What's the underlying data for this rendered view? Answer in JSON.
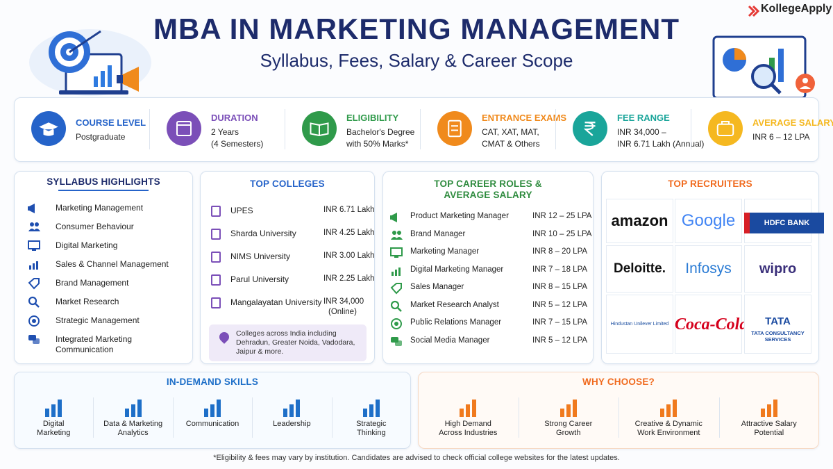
{
  "brand": "KollegeApply",
  "header": {
    "title": "MBA IN MARKETING MANAGEMENT",
    "subtitle": "Syllabus, Fees, Salary & Career Scope"
  },
  "facts": [
    {
      "label": "COURSE LEVEL",
      "lines": [
        "Postgraduate"
      ]
    },
    {
      "label": "DURATION",
      "lines": [
        "2 Years",
        "(4 Semesters)"
      ]
    },
    {
      "label": "ELIGIBILITY",
      "lines": [
        "Bachelor's Degree",
        "with 50% Marks*"
      ]
    },
    {
      "label": "ENTRANCE EXAMS",
      "lines": [
        "CAT, XAT, MAT,",
        "CMAT & Others"
      ]
    },
    {
      "label": "FEE RANGE",
      "lines": [
        "INR 34,000 –",
        "INR 6.71 Lakh (Annual)"
      ]
    },
    {
      "label": "AVERAGE SALARY",
      "lines": [
        "INR 6 – 12 LPA"
      ]
    }
  ],
  "syllabus": {
    "title": "SYLLABUS HIGHLIGHTS",
    "items": [
      "Marketing Management",
      "Consumer Behaviour",
      "Digital Marketing",
      "Sales & Channel Management",
      "Brand Management",
      "Market Research",
      "Strategic Management",
      "Integrated Marketing Communication"
    ]
  },
  "colleges": {
    "title": "TOP COLLEGES",
    "rows": [
      {
        "name": "UPES",
        "fee": "INR 6.71 Lakh"
      },
      {
        "name": "Sharda University",
        "fee": "INR 4.25 Lakh"
      },
      {
        "name": "NIMS University",
        "fee": "INR 3.00 Lakh"
      },
      {
        "name": "Parul University",
        "fee": "INR 2.25 Lakh"
      },
      {
        "name": "Mangalayatan University",
        "fee": "INR 34,000",
        "fee_note": "(Online)"
      }
    ],
    "note": "Colleges across India including Dehradun, Greater Noida, Vadodara, Jaipur & more."
  },
  "careers": {
    "title": "TOP CAREER ROLES & AVERAGE SALARY",
    "rows": [
      {
        "role": "Product Marketing Manager",
        "salary": "INR 12 – 25 LPA"
      },
      {
        "role": "Brand Manager",
        "salary": "INR 10 – 25 LPA"
      },
      {
        "role": "Marketing Manager",
        "salary": "INR 8 – 20 LPA"
      },
      {
        "role": "Digital Marketing Manager",
        "salary": "INR 7 – 18 LPA"
      },
      {
        "role": "Sales Manager",
        "salary": "INR 8 – 15 LPA"
      },
      {
        "role": "Market Research Analyst",
        "salary": "INR 5 – 12 LPA"
      },
      {
        "role": "Public Relations Manager",
        "salary": "INR 7 – 15 LPA"
      },
      {
        "role": "Social Media Manager",
        "salary": "INR 5 – 12 LPA"
      }
    ]
  },
  "recruiters": {
    "title": "TOP RECRUITERS",
    "items": [
      {
        "name": "amazon"
      },
      {
        "name": "Google"
      },
      {
        "name": "HDFC BANK"
      },
      {
        "name": "Deloitte."
      },
      {
        "name": "Infosys"
      },
      {
        "name": "wipro"
      },
      {
        "name": "Hindustan Unilever Limited"
      },
      {
        "name": "Coca-Cola"
      },
      {
        "name": "TATA",
        "caption": "TATA CONSULTANCY SERVICES"
      }
    ]
  },
  "skills": {
    "title": "IN-DEMAND SKILLS",
    "items": [
      [
        "Digital",
        "Marketing"
      ],
      [
        "Data & Marketing",
        "Analytics"
      ],
      [
        "Communication"
      ],
      [
        "Leadership"
      ],
      [
        "Strategic",
        "Thinking"
      ]
    ]
  },
  "why": {
    "title": "WHY CHOOSE?",
    "items": [
      [
        "High Demand",
        "Across Industries"
      ],
      [
        "Strong Career",
        "Growth"
      ],
      [
        "Creative & Dynamic",
        "Work Environment"
      ],
      [
        "Attractive Salary",
        "Potential"
      ]
    ]
  },
  "footnote": "*Eligibility & fees may vary by institution. Candidates are advised to check official college websites for the latest updates."
}
